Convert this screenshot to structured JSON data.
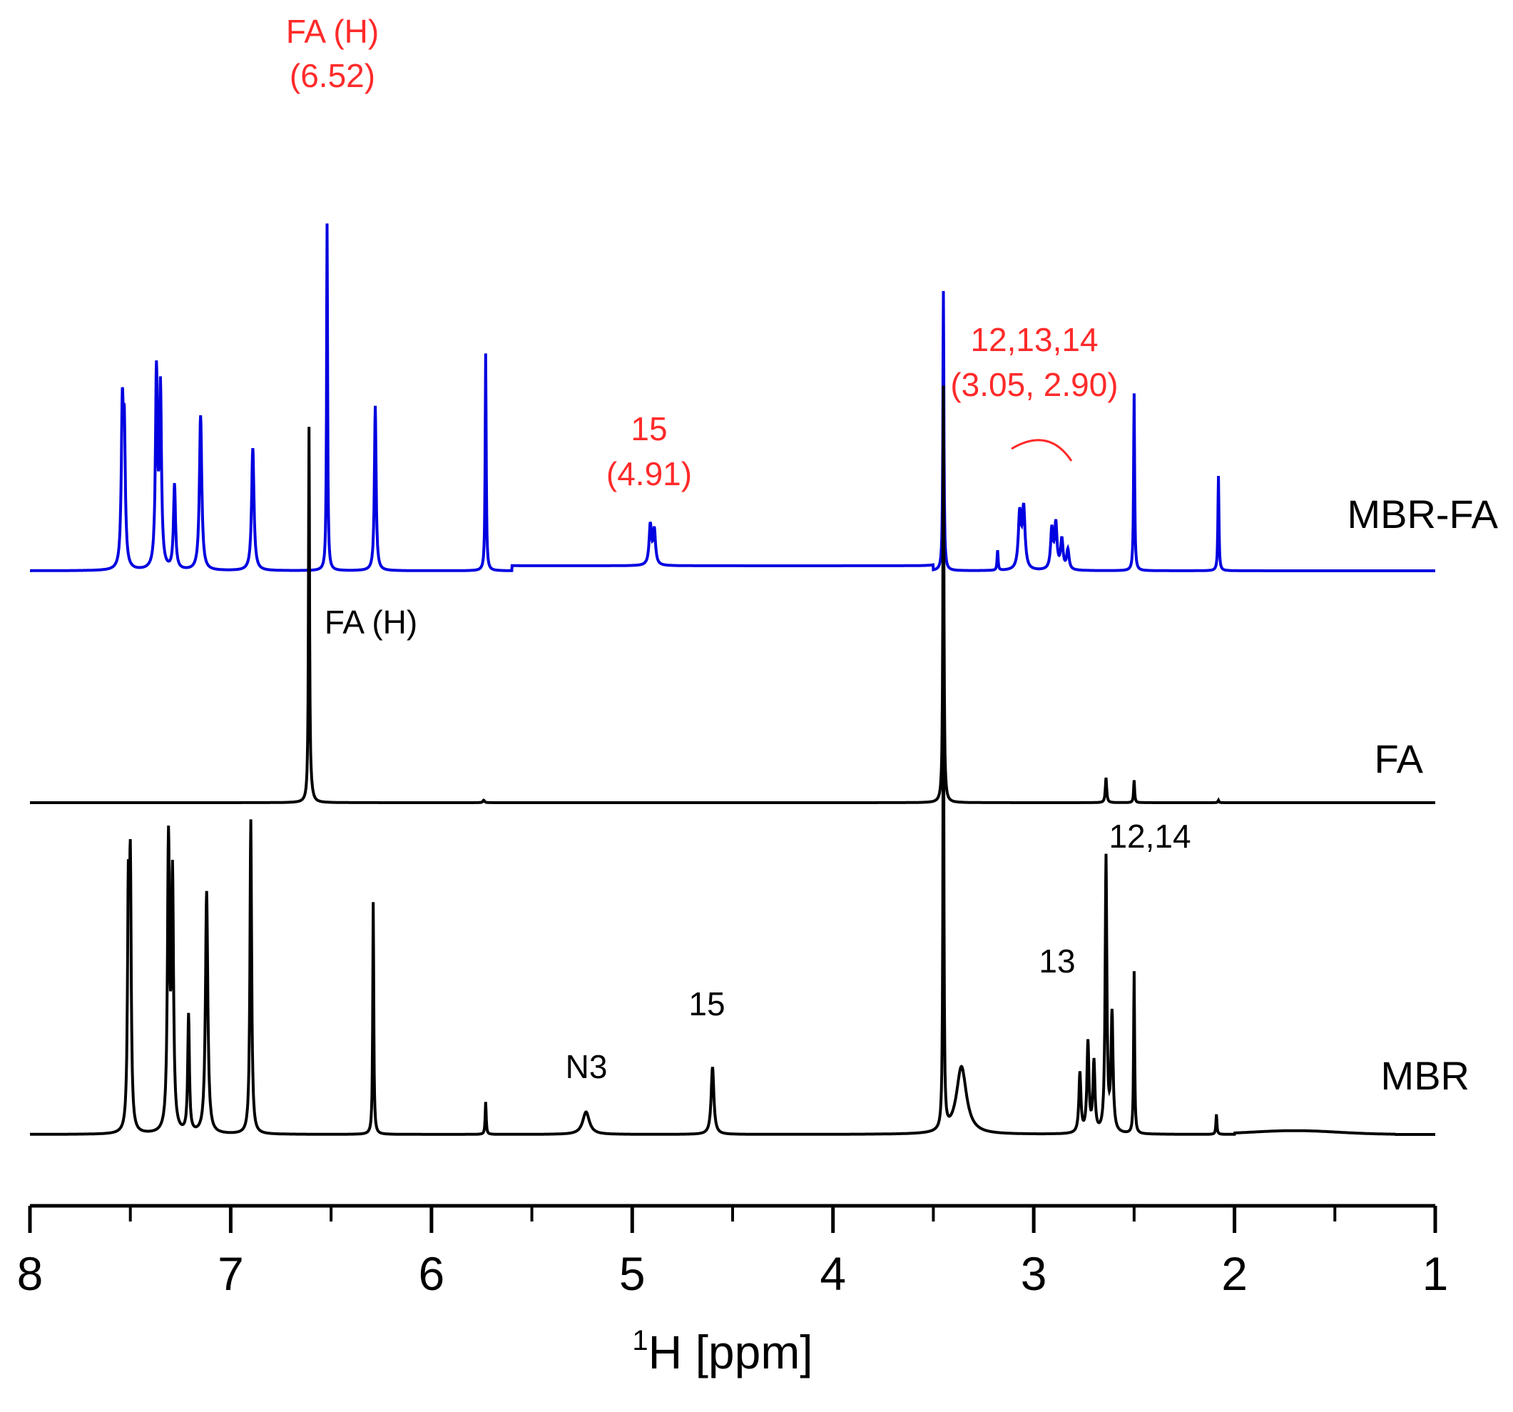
{
  "chart_data": {
    "type": "line",
    "title": "",
    "xlabel": {
      "sup": "1",
      "main": "H [ppm]"
    },
    "xlim": [
      8,
      1
    ],
    "x_reversed": true,
    "x_major_ticks": [
      8,
      7,
      6,
      5,
      4,
      3,
      2,
      1
    ],
    "x_tick_labels": [
      "8",
      "7",
      "6",
      "5",
      "4",
      "3",
      "2",
      "1"
    ],
    "x_minor_step": 0.5,
    "y_visible": false,
    "colors": {
      "red": "#ff2a2a",
      "blue": "#0000e0",
      "black": "#000000"
    },
    "series": [
      {
        "name": "MBR-FA",
        "color": "#0000e0",
        "baseline_rel": 0.0,
        "peaks": [
          {
            "ppm": 7.54,
            "h": 0.6,
            "w": 0.006
          },
          {
            "ppm": 7.53,
            "h": 0.5,
            "w": 0.006
          },
          {
            "ppm": 7.37,
            "h": 0.78,
            "w": 0.006
          },
          {
            "ppm": 7.35,
            "h": 0.71,
            "w": 0.006
          },
          {
            "ppm": 7.28,
            "h": 0.34,
            "w": 0.006
          },
          {
            "ppm": 7.15,
            "h": 0.62,
            "w": 0.007
          },
          {
            "ppm": 6.89,
            "h": 0.49,
            "w": 0.007
          },
          {
            "ppm": 6.52,
            "h": 1.39,
            "w": 0.003
          },
          {
            "ppm": 6.28,
            "h": 0.66,
            "w": 0.005
          },
          {
            "ppm": 5.73,
            "h": 0.87,
            "w": 0.003
          },
          {
            "ppm": 4.91,
            "h": 0.16,
            "w": 0.007
          },
          {
            "ppm": 4.89,
            "h": 0.14,
            "w": 0.007
          },
          {
            "ppm": 3.45,
            "h": 1.12,
            "w": 0.003
          },
          {
            "ppm": 3.18,
            "h": 0.08,
            "w": 0.003
          },
          {
            "ppm": 3.07,
            "h": 0.22,
            "w": 0.008
          },
          {
            "ppm": 3.05,
            "h": 0.24,
            "w": 0.008
          },
          {
            "ppm": 2.91,
            "h": 0.16,
            "w": 0.007
          },
          {
            "ppm": 2.89,
            "h": 0.18,
            "w": 0.007
          },
          {
            "ppm": 2.86,
            "h": 0.12,
            "w": 0.007
          },
          {
            "ppm": 2.83,
            "h": 0.08,
            "w": 0.007
          },
          {
            "ppm": 2.5,
            "h": 0.71,
            "w": 0.003
          },
          {
            "ppm": 2.08,
            "h": 0.38,
            "w": 0.003
          }
        ]
      },
      {
        "name": "FA",
        "color": "#000000",
        "baseline_rel": 0.0,
        "peaks": [
          {
            "ppm": 6.61,
            "h": 1.49,
            "w": 0.003
          },
          {
            "ppm": 6.6,
            "h": 0.03,
            "w": 0.01
          },
          {
            "ppm": 5.74,
            "h": 0.01,
            "w": 0.005
          },
          {
            "ppm": 3.45,
            "h": 1.67,
            "w": 0.003
          },
          {
            "ppm": 2.64,
            "h": 0.1,
            "w": 0.004
          },
          {
            "ppm": 2.5,
            "h": 0.09,
            "w": 0.003
          },
          {
            "ppm": 2.08,
            "h": 0.01,
            "w": 0.003
          }
        ]
      },
      {
        "name": "MBR",
        "color": "#000000",
        "baseline_rel": 0.0,
        "peaks": [
          {
            "ppm": 7.51,
            "h": 0.9,
            "w": 0.005
          },
          {
            "ppm": 7.5,
            "h": 1.0,
            "w": 0.005
          },
          {
            "ppm": 7.31,
            "h": 1.15,
            "w": 0.006
          },
          {
            "ppm": 7.29,
            "h": 1.0,
            "w": 0.006
          },
          {
            "ppm": 7.21,
            "h": 0.47,
            "w": 0.005
          },
          {
            "ppm": 7.12,
            "h": 0.97,
            "w": 0.007
          },
          {
            "ppm": 6.9,
            "h": 1.26,
            "w": 0.005
          },
          {
            "ppm": 6.29,
            "h": 0.93,
            "w": 0.003
          },
          {
            "ppm": 5.73,
            "h": 0.13,
            "w": 0.003
          },
          {
            "ppm": 5.23,
            "h": 0.09,
            "w": 0.02
          },
          {
            "ppm": 4.6,
            "h": 0.27,
            "w": 0.008
          },
          {
            "ppm": 3.45,
            "h": 1.9,
            "w": 0.003
          },
          {
            "ppm": 3.36,
            "h": 0.27,
            "w": 0.03
          },
          {
            "ppm": 2.77,
            "h": 0.24,
            "w": 0.006
          },
          {
            "ppm": 2.73,
            "h": 0.36,
            "w": 0.006
          },
          {
            "ppm": 2.7,
            "h": 0.28,
            "w": 0.006
          },
          {
            "ppm": 2.64,
            "h": 1.1,
            "w": 0.005
          },
          {
            "ppm": 2.61,
            "h": 0.47,
            "w": 0.006
          },
          {
            "ppm": 2.5,
            "h": 0.65,
            "w": 0.003
          },
          {
            "ppm": 2.09,
            "h": 0.08,
            "w": 0.003
          }
        ]
      }
    ],
    "annotations": [
      {
        "series": "MBR-FA",
        "lines": [
          "FA (H)",
          "(6.52)"
        ],
        "color": "#ff2a2a",
        "ppm": 6.52
      },
      {
        "series": "MBR-FA",
        "lines": [
          "15",
          "(4.91)"
        ],
        "color": "#ff2a2a",
        "ppm": 4.91
      },
      {
        "series": "MBR-FA",
        "lines": [
          "12,13,14",
          "(3.05, 2.90)"
        ],
        "color": "#ff2a2a",
        "ppm": 3.0
      },
      {
        "series": "FA",
        "lines": [
          "FA (H)"
        ],
        "color": "#000000",
        "ppm": 6.4
      },
      {
        "series": "MBR",
        "lines": [
          "12,14"
        ],
        "color": "#000000",
        "ppm": 2.4
      },
      {
        "series": "MBR",
        "lines": [
          "13"
        ],
        "color": "#000000",
        "ppm": 2.85
      },
      {
        "series": "MBR",
        "lines": [
          "15"
        ],
        "color": "#000000",
        "ppm": 4.6
      },
      {
        "series": "MBR",
        "lines": [
          "N3"
        ],
        "color": "#000000",
        "ppm": 5.23
      }
    ]
  }
}
